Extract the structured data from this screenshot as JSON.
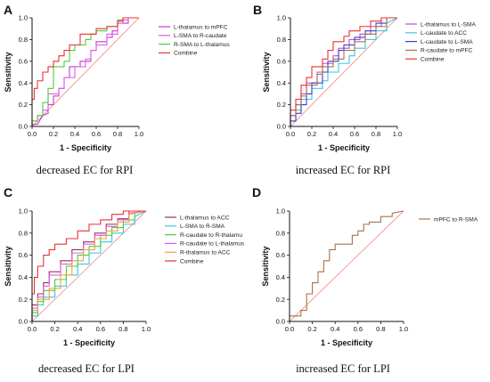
{
  "colors": {
    "purple": "#c23bd4",
    "pink": "#e05ce8",
    "magenta": "#b44fd3",
    "green": "#4ccd3a",
    "red": "#ee3030",
    "cyan": "#39c8e0",
    "blue": "#3d3dc8",
    "darkred": "#9b2f55",
    "orange": "#f0a040",
    "brown": "#a87248",
    "diagonal": "#f08080",
    "axis": "#111111"
  },
  "chart_data": [
    {
      "type": "line",
      "panel": "A",
      "caption": "decreased EC for RPI",
      "xlabel": "1 - Specificity",
      "ylabel": "Sensitivity",
      "xlim": [
        0,
        1
      ],
      "ylim": [
        0,
        1
      ],
      "xticks": [
        "0.0",
        "0.2",
        "0.4",
        "0.6",
        "0.8",
        "1.0"
      ],
      "yticks": [
        "0.0",
        "0.2",
        "0.4",
        "0.6",
        "0.8",
        "1.0"
      ],
      "grid": false,
      "legend_position": "right",
      "diagonal": true,
      "series": [
        {
          "name": "L-thalamus to mPFC",
          "color": "#c23bd4",
          "x": [
            0,
            0,
            0.05,
            0.1,
            0.1,
            0.15,
            0.15,
            0.2,
            0.2,
            0.25,
            0.25,
            0.3,
            0.3,
            0.35,
            0.35,
            0.45,
            0.45,
            0.55,
            0.55,
            0.6,
            0.6,
            0.7,
            0.7,
            0.75,
            0.75,
            0.8,
            0.8,
            0.9,
            0.9,
            1.0
          ],
          "y": [
            0,
            0.02,
            0.02,
            0.1,
            0.1,
            0.12,
            0.2,
            0.2,
            0.28,
            0.28,
            0.35,
            0.35,
            0.45,
            0.45,
            0.55,
            0.55,
            0.6,
            0.6,
            0.7,
            0.7,
            0.78,
            0.78,
            0.82,
            0.82,
            0.88,
            0.88,
            0.95,
            0.95,
            1.0,
            1.0
          ]
        },
        {
          "name": "L-SMA to R-caudate",
          "color": "#e05ce8",
          "x": [
            0,
            0,
            0.05,
            0.05,
            0.1,
            0.1,
            0.15,
            0.15,
            0.25,
            0.25,
            0.3,
            0.3,
            0.4,
            0.4,
            0.5,
            0.5,
            0.55,
            0.55,
            0.6,
            0.6,
            0.7,
            0.7,
            0.8,
            0.8,
            0.85,
            0.85,
            0.9,
            0.9,
            1.0
          ],
          "y": [
            0,
            0.05,
            0.05,
            0.1,
            0.1,
            0.15,
            0.15,
            0.3,
            0.3,
            0.35,
            0.35,
            0.45,
            0.45,
            0.55,
            0.55,
            0.62,
            0.62,
            0.7,
            0.7,
            0.75,
            0.75,
            0.85,
            0.85,
            0.95,
            0.95,
            0.98,
            0.98,
            1.0,
            1.0
          ]
        },
        {
          "name": "R-SMA to L-thalamus",
          "color": "#4ccd3a",
          "x": [
            0,
            0,
            0.05,
            0.05,
            0.1,
            0.1,
            0.15,
            0.15,
            0.2,
            0.2,
            0.3,
            0.3,
            0.35,
            0.35,
            0.4,
            0.4,
            0.5,
            0.5,
            0.55,
            0.55,
            0.6,
            0.6,
            0.7,
            0.7,
            0.8,
            0.8,
            0.85,
            0.85,
            1.0
          ],
          "y": [
            0,
            0.05,
            0.05,
            0.1,
            0.1,
            0.22,
            0.22,
            0.35,
            0.35,
            0.55,
            0.55,
            0.6,
            0.6,
            0.7,
            0.7,
            0.75,
            0.75,
            0.8,
            0.8,
            0.85,
            0.85,
            0.88,
            0.88,
            0.92,
            0.92,
            0.98,
            0.98,
            1.0,
            1.0
          ]
        },
        {
          "name": "Combine",
          "color": "#ee3030",
          "x": [
            0,
            0,
            0.02,
            0.02,
            0.05,
            0.05,
            0.1,
            0.1,
            0.15,
            0.15,
            0.2,
            0.2,
            0.25,
            0.25,
            0.3,
            0.3,
            0.35,
            0.35,
            0.45,
            0.45,
            0.6,
            0.6,
            0.7,
            0.7,
            0.8,
            0.8,
            0.85,
            0.85,
            1.0
          ],
          "y": [
            0,
            0.25,
            0.25,
            0.35,
            0.35,
            0.42,
            0.42,
            0.5,
            0.5,
            0.55,
            0.55,
            0.6,
            0.6,
            0.65,
            0.65,
            0.7,
            0.7,
            0.75,
            0.75,
            0.85,
            0.85,
            0.9,
            0.9,
            0.92,
            0.92,
            0.97,
            0.97,
            1.0,
            1.0
          ]
        }
      ]
    },
    {
      "type": "line",
      "panel": "B",
      "caption": "increased EC for RPI",
      "xlabel": "1 - Specificity",
      "ylabel": "Sensitivity",
      "xlim": [
        0,
        1
      ],
      "ylim": [
        0,
        1
      ],
      "xticks": [
        "0.0",
        "0.2",
        "0.4",
        "0.6",
        "0.8",
        "1.0"
      ],
      "yticks": [
        "0.0",
        "0.2",
        "0.4",
        "0.6",
        "0.8",
        "1.0"
      ],
      "grid": false,
      "legend_position": "right",
      "diagonal": true,
      "series": [
        {
          "name": "L-thalamus to L-SMA",
          "color": "#b44fd3",
          "x": [
            0,
            0,
            0.05,
            0.05,
            0.1,
            0.1,
            0.15,
            0.15,
            0.25,
            0.25,
            0.3,
            0.3,
            0.4,
            0.4,
            0.45,
            0.45,
            0.55,
            0.55,
            0.65,
            0.65,
            0.75,
            0.75,
            0.85,
            0.85,
            1.0
          ],
          "y": [
            0,
            0.1,
            0.1,
            0.2,
            0.2,
            0.3,
            0.3,
            0.4,
            0.4,
            0.5,
            0.5,
            0.58,
            0.58,
            0.65,
            0.65,
            0.72,
            0.72,
            0.8,
            0.8,
            0.85,
            0.85,
            0.92,
            0.92,
            1.0,
            1.0
          ]
        },
        {
          "name": "L-caudate to ACC",
          "color": "#39c8e0",
          "x": [
            0,
            0,
            0.05,
            0.05,
            0.1,
            0.1,
            0.2,
            0.2,
            0.3,
            0.3,
            0.35,
            0.35,
            0.45,
            0.45,
            0.55,
            0.55,
            0.6,
            0.6,
            0.7,
            0.7,
            0.8,
            0.8,
            0.9,
            0.9,
            1.0
          ],
          "y": [
            0,
            0.05,
            0.05,
            0.15,
            0.15,
            0.25,
            0.25,
            0.35,
            0.35,
            0.42,
            0.42,
            0.5,
            0.5,
            0.58,
            0.58,
            0.65,
            0.65,
            0.72,
            0.72,
            0.8,
            0.8,
            0.88,
            0.88,
            0.95,
            1.0
          ]
        },
        {
          "name": "L-caudate to L-SMA",
          "color": "#3d3dc8",
          "x": [
            0,
            0,
            0.05,
            0.05,
            0.1,
            0.1,
            0.15,
            0.15,
            0.2,
            0.2,
            0.3,
            0.3,
            0.35,
            0.35,
            0.45,
            0.45,
            0.5,
            0.5,
            0.6,
            0.6,
            0.7,
            0.7,
            0.8,
            0.8,
            0.9,
            0.9,
            1.0
          ],
          "y": [
            0,
            0.05,
            0.05,
            0.12,
            0.12,
            0.2,
            0.2,
            0.3,
            0.3,
            0.4,
            0.4,
            0.5,
            0.5,
            0.6,
            0.6,
            0.7,
            0.7,
            0.75,
            0.75,
            0.82,
            0.82,
            0.88,
            0.88,
            0.95,
            0.95,
            1.0,
            1.0
          ]
        },
        {
          "name": "R-caudate to mPFC",
          "color": "#a87248",
          "x": [
            0,
            0,
            0.05,
            0.05,
            0.1,
            0.1,
            0.15,
            0.15,
            0.25,
            0.25,
            0.3,
            0.3,
            0.4,
            0.4,
            0.5,
            0.5,
            0.6,
            0.6,
            0.7,
            0.7,
            0.8,
            0.8,
            0.9,
            0.9,
            1.0
          ],
          "y": [
            0,
            0.1,
            0.1,
            0.2,
            0.2,
            0.28,
            0.28,
            0.38,
            0.38,
            0.48,
            0.48,
            0.55,
            0.55,
            0.62,
            0.62,
            0.7,
            0.7,
            0.78,
            0.78,
            0.85,
            0.85,
            0.92,
            0.92,
            1.0,
            1.0
          ]
        },
        {
          "name": "Combine",
          "color": "#ee3030",
          "x": [
            0,
            0,
            0.05,
            0.05,
            0.1,
            0.1,
            0.15,
            0.15,
            0.2,
            0.2,
            0.3,
            0.3,
            0.35,
            0.35,
            0.4,
            0.4,
            0.5,
            0.5,
            0.55,
            0.55,
            0.65,
            0.65,
            0.75,
            0.75,
            0.85,
            0.85,
            1.0
          ],
          "y": [
            0,
            0.15,
            0.15,
            0.25,
            0.25,
            0.38,
            0.38,
            0.45,
            0.45,
            0.55,
            0.55,
            0.62,
            0.62,
            0.7,
            0.7,
            0.78,
            0.78,
            0.83,
            0.83,
            0.88,
            0.88,
            0.92,
            0.92,
            0.97,
            0.97,
            1.0,
            1.0
          ]
        }
      ]
    },
    {
      "type": "line",
      "panel": "C",
      "caption": "decreased EC for LPI",
      "xlabel": "1 - Specificity",
      "ylabel": "Sensitivity",
      "xlim": [
        0,
        1
      ],
      "ylim": [
        0,
        1
      ],
      "xticks": [
        "0.0",
        "0.2",
        "0.4",
        "0.6",
        "0.8",
        "1.0"
      ],
      "yticks": [
        "0.0",
        "0.2",
        "0.4",
        "0.6",
        "0.8",
        "1.0"
      ],
      "grid": false,
      "legend_position": "right",
      "diagonal": true,
      "series": [
        {
          "name": "L-thalamus to ACC",
          "color": "#9b2f55",
          "x": [
            0,
            0,
            0.05,
            0.05,
            0.1,
            0.1,
            0.15,
            0.15,
            0.25,
            0.25,
            0.35,
            0.35,
            0.45,
            0.45,
            0.55,
            0.55,
            0.65,
            0.65,
            0.75,
            0.75,
            0.85,
            0.85,
            1.0
          ],
          "y": [
            0,
            0.15,
            0.15,
            0.25,
            0.25,
            0.35,
            0.35,
            0.45,
            0.45,
            0.55,
            0.55,
            0.65,
            0.65,
            0.72,
            0.72,
            0.8,
            0.8,
            0.88,
            0.88,
            0.93,
            0.93,
            1.0,
            1.0
          ]
        },
        {
          "name": "L-SMA to R-SMA",
          "color": "#39c8e0",
          "x": [
            0,
            0,
            0.05,
            0.05,
            0.1,
            0.1,
            0.2,
            0.2,
            0.3,
            0.3,
            0.4,
            0.4,
            0.5,
            0.5,
            0.6,
            0.6,
            0.7,
            0.7,
            0.8,
            0.8,
            0.9,
            0.9,
            1.0
          ],
          "y": [
            0,
            0.05,
            0.05,
            0.15,
            0.15,
            0.22,
            0.22,
            0.32,
            0.32,
            0.42,
            0.42,
            0.52,
            0.52,
            0.62,
            0.62,
            0.72,
            0.72,
            0.8,
            0.8,
            0.88,
            0.88,
            0.95,
            1.0
          ]
        },
        {
          "name": "R-caudate to R-thalamu",
          "color": "#4ccd3a",
          "x": [
            0,
            0,
            0.05,
            0.05,
            0.1,
            0.1,
            0.2,
            0.2,
            0.3,
            0.3,
            0.4,
            0.4,
            0.5,
            0.5,
            0.6,
            0.6,
            0.7,
            0.7,
            0.8,
            0.8,
            0.9,
            0.9,
            1.0
          ],
          "y": [
            0,
            0.08,
            0.08,
            0.18,
            0.18,
            0.28,
            0.28,
            0.38,
            0.38,
            0.5,
            0.5,
            0.6,
            0.6,
            0.68,
            0.68,
            0.78,
            0.78,
            0.85,
            0.85,
            0.92,
            0.92,
            0.98,
            1.0
          ]
        },
        {
          "name": "R-caudate to L-thalamus",
          "color": "#e05ce8",
          "x": [
            0,
            0,
            0.05,
            0.05,
            0.1,
            0.1,
            0.15,
            0.15,
            0.25,
            0.25,
            0.35,
            0.35,
            0.45,
            0.45,
            0.55,
            0.55,
            0.65,
            0.65,
            0.75,
            0.75,
            0.85,
            0.85,
            1.0
          ],
          "y": [
            0,
            0.12,
            0.12,
            0.22,
            0.22,
            0.32,
            0.32,
            0.42,
            0.42,
            0.52,
            0.52,
            0.62,
            0.62,
            0.7,
            0.7,
            0.78,
            0.78,
            0.86,
            0.86,
            0.92,
            0.92,
            0.98,
            1.0
          ]
        },
        {
          "name": "R-thalamus to ACC",
          "color": "#f0a040",
          "x": [
            0,
            0,
            0.05,
            0.05,
            0.15,
            0.15,
            0.25,
            0.25,
            0.35,
            0.35,
            0.45,
            0.45,
            0.55,
            0.55,
            0.65,
            0.65,
            0.75,
            0.75,
            0.85,
            0.85,
            1.0
          ],
          "y": [
            0,
            0.1,
            0.1,
            0.2,
            0.2,
            0.3,
            0.3,
            0.42,
            0.42,
            0.55,
            0.55,
            0.65,
            0.65,
            0.75,
            0.75,
            0.82,
            0.82,
            0.9,
            0.9,
            0.97,
            1.0
          ]
        },
        {
          "name": "Combine",
          "color": "#ee3030",
          "x": [
            0,
            0,
            0.02,
            0.02,
            0.05,
            0.05,
            0.1,
            0.1,
            0.15,
            0.15,
            0.2,
            0.2,
            0.3,
            0.3,
            0.4,
            0.4,
            0.5,
            0.5,
            0.6,
            0.6,
            0.7,
            0.7,
            0.8,
            0.8,
            1.0
          ],
          "y": [
            0,
            0.25,
            0.25,
            0.4,
            0.4,
            0.5,
            0.5,
            0.6,
            0.6,
            0.65,
            0.65,
            0.7,
            0.7,
            0.75,
            0.75,
            0.82,
            0.82,
            0.88,
            0.88,
            0.92,
            0.92,
            0.97,
            0.97,
            1.0,
            1.0
          ]
        }
      ]
    },
    {
      "type": "line",
      "panel": "D",
      "caption": "increased EC for LPI",
      "xlabel": "1 - Specificity",
      "ylabel": "Sensitivity",
      "xlim": [
        0,
        1
      ],
      "ylim": [
        0,
        1
      ],
      "xticks": [
        "0.0",
        "0.2",
        "0.4",
        "0.6",
        "0.8",
        "1.0"
      ],
      "yticks": [
        "0.0",
        "0.2",
        "0.4",
        "0.6",
        "0.8",
        "1.0"
      ],
      "grid": false,
      "legend_position": "right",
      "diagonal": true,
      "series": [
        {
          "name": "mPFC to R-SMA",
          "color": "#a87248",
          "x": [
            0,
            0,
            0.1,
            0.1,
            0.15,
            0.15,
            0.2,
            0.2,
            0.25,
            0.25,
            0.3,
            0.3,
            0.35,
            0.35,
            0.4,
            0.4,
            0.55,
            0.55,
            0.6,
            0.6,
            0.65,
            0.65,
            0.7,
            0.7,
            0.8,
            0.8,
            0.9,
            0.9,
            1.0
          ],
          "y": [
            0,
            0.05,
            0.05,
            0.1,
            0.1,
            0.25,
            0.25,
            0.35,
            0.35,
            0.45,
            0.45,
            0.55,
            0.55,
            0.65,
            0.65,
            0.7,
            0.7,
            0.78,
            0.78,
            0.82,
            0.82,
            0.88,
            0.88,
            0.9,
            0.9,
            0.95,
            0.95,
            0.98,
            1.0
          ]
        }
      ]
    }
  ]
}
